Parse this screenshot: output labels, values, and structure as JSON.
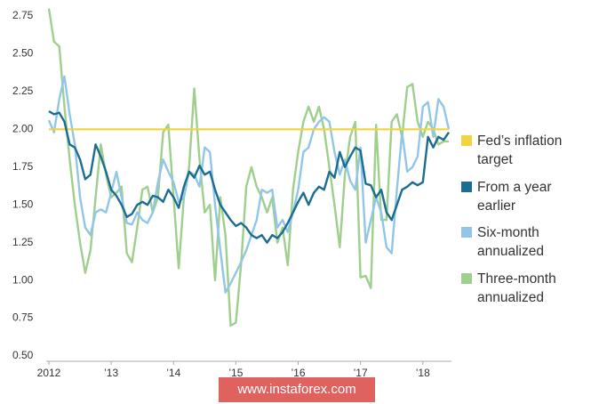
{
  "chart_data": {
    "type": "line",
    "categories": [
      "2012",
      null,
      null,
      null,
      null,
      null,
      null,
      null,
      null,
      null,
      null,
      null,
      "’13",
      null,
      null,
      null,
      null,
      null,
      null,
      null,
      null,
      null,
      null,
      null,
      "’14",
      null,
      null,
      null,
      null,
      null,
      null,
      null,
      null,
      null,
      null,
      null,
      "’15",
      null,
      null,
      null,
      null,
      null,
      null,
      null,
      null,
      null,
      null,
      null,
      "’16",
      null,
      null,
      null,
      null,
      null,
      null,
      null,
      null,
      null,
      null,
      null,
      "’17",
      null,
      null,
      null,
      null,
      null,
      null,
      null,
      null,
      null,
      null,
      null,
      "’18",
      null,
      null,
      null,
      null,
      null
    ],
    "target": {
      "name": "Fed’s inflation target",
      "value": 2.0,
      "color": "#f3d33f"
    },
    "series": [
      {
        "name": "From a year earlier",
        "color": "#1b6d92",
        "values": [
          2.12,
          2.1,
          2.11,
          2.05,
          1.9,
          1.88,
          1.8,
          1.67,
          1.7,
          1.9,
          1.82,
          1.72,
          1.6,
          1.56,
          1.5,
          1.42,
          1.44,
          1.5,
          1.52,
          1.5,
          1.56,
          1.55,
          1.52,
          1.6,
          1.55,
          1.48,
          1.62,
          1.72,
          1.68,
          1.76,
          1.7,
          1.72,
          1.6,
          1.5,
          1.45,
          1.4,
          1.36,
          1.38,
          1.35,
          1.3,
          1.28,
          1.3,
          1.25,
          1.3,
          1.28,
          1.32,
          1.38,
          1.45,
          1.52,
          1.58,
          1.5,
          1.58,
          1.62,
          1.6,
          1.72,
          1.68,
          1.85,
          1.75,
          1.82,
          1.88,
          1.86,
          1.64,
          1.63,
          1.55,
          1.6,
          1.45,
          1.4,
          1.5,
          1.6,
          1.62,
          1.65,
          1.63,
          1.65,
          1.95,
          1.88,
          1.95,
          1.93,
          1.98
        ]
      },
      {
        "name": "Six-month annualized",
        "color": "#91c6e8",
        "values": [
          2.06,
          1.98,
          2.2,
          2.35,
          2.1,
          1.9,
          1.55,
          1.35,
          1.3,
          1.45,
          1.47,
          1.45,
          1.58,
          1.72,
          1.55,
          1.38,
          1.37,
          1.45,
          1.4,
          1.38,
          1.45,
          1.65,
          1.8,
          1.72,
          1.65,
          1.52,
          1.55,
          1.72,
          1.7,
          1.62,
          1.88,
          1.85,
          1.5,
          1.2,
          0.92,
          0.98,
          1.05,
          1.12,
          1.2,
          1.3,
          1.4,
          1.6,
          1.58,
          1.6,
          1.35,
          1.4,
          1.32,
          1.45,
          1.6,
          1.85,
          1.88,
          2.0,
          2.05,
          2.08,
          2.05,
          1.85,
          1.7,
          1.8,
          1.66,
          1.6,
          1.88,
          1.25,
          1.4,
          1.55,
          1.45,
          1.22,
          1.18,
          1.6,
          1.98,
          1.72,
          1.75,
          1.82,
          2.15,
          2.18,
          1.95,
          2.2,
          2.15,
          2.0
        ]
      },
      {
        "name": "Three-month annualized",
        "color": "#9fcf8c",
        "values": [
          2.8,
          2.58,
          2.55,
          2.15,
          1.8,
          1.5,
          1.25,
          1.05,
          1.2,
          1.55,
          1.9,
          1.7,
          1.55,
          1.58,
          1.62,
          1.18,
          1.12,
          1.35,
          1.6,
          1.62,
          1.45,
          1.55,
          1.98,
          2.03,
          1.55,
          1.08,
          1.55,
          1.75,
          2.27,
          1.8,
          1.45,
          1.5,
          1.0,
          1.55,
          1.3,
          0.7,
          0.72,
          1.1,
          1.62,
          1.75,
          1.62,
          1.55,
          1.45,
          1.55,
          1.25,
          1.35,
          1.1,
          1.6,
          1.85,
          2.05,
          2.15,
          2.05,
          2.15,
          2.0,
          1.75,
          1.5,
          1.22,
          1.7,
          1.95,
          2.05,
          1.02,
          1.03,
          0.95,
          2.03,
          1.4,
          1.4,
          2.05,
          2.1,
          1.95,
          2.28,
          2.3,
          2.05,
          1.95,
          2.05,
          2.0,
          1.9,
          1.92,
          1.92
        ]
      }
    ],
    "ylim": [
      0.5,
      2.75
    ],
    "yticks": [
      {
        "value": 0.5,
        "label": "0.50"
      },
      {
        "value": 0.75,
        "label": "0.75"
      },
      {
        "value": 1.0,
        "label": "1.00"
      },
      {
        "value": 1.25,
        "label": "1.25"
      },
      {
        "value": 1.5,
        "label": "1.50"
      },
      {
        "value": 1.75,
        "label": "1.75"
      },
      {
        "value": 2.0,
        "label": "2.00"
      },
      {
        "value": 2.25,
        "label": "2.25"
      },
      {
        "value": 2.5,
        "label": "2.50"
      },
      {
        "value": 2.75,
        "label": "2.75"
      }
    ],
    "grid": false
  },
  "watermark": "www.instaforex.com"
}
